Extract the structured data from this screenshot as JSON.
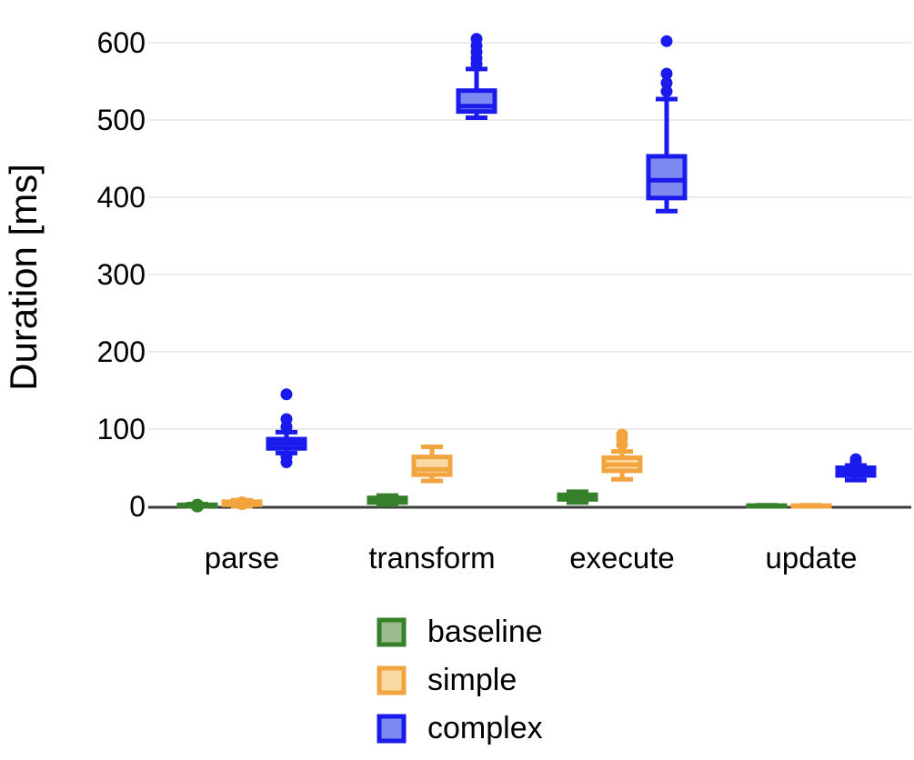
{
  "chart_data": {
    "type": "boxplot",
    "title": "",
    "xlabel": "",
    "ylabel": "Duration [ms]",
    "ylim": [
      0,
      640
    ],
    "yticks": [
      0,
      100,
      200,
      300,
      400,
      500,
      600
    ],
    "grid": "horizontal",
    "categories": [
      "parse",
      "transform",
      "execute",
      "update"
    ],
    "legend": {
      "position": "bottom",
      "entries": [
        "baseline",
        "simple",
        "complex"
      ]
    },
    "colors": {
      "gridline": "#ebebeb",
      "axis": "#3d3d3d",
      "text": "#000000"
    },
    "series": [
      {
        "name": "baseline",
        "border": "#36802b",
        "fill": "#9abb8d",
        "boxes": [
          {
            "category": "parse",
            "low": 0,
            "q1": 0.5,
            "median": 1,
            "q3": 2,
            "high": 3,
            "outliers": [],
            "median_dot": true
          },
          {
            "category": "transform",
            "low": 2,
            "q1": 5,
            "median": 8,
            "q3": 11,
            "high": 14,
            "outliers": [],
            "median_dot": true
          },
          {
            "category": "execute",
            "low": 5,
            "q1": 9,
            "median": 12,
            "q3": 15,
            "high": 19,
            "outliers": [],
            "median_dot": true
          },
          {
            "category": "update",
            "low": 0,
            "q1": 0,
            "median": 0.5,
            "q3": 1,
            "high": 1.5,
            "outliers": [],
            "median_dot": false
          }
        ]
      },
      {
        "name": "simple",
        "border": "#f2a43e",
        "fill": "#fbd9a2",
        "boxes": [
          {
            "category": "parse",
            "low": 0,
            "q1": 2,
            "median": 4,
            "q3": 6,
            "high": 8,
            "outliers": [],
            "median_dot": true
          },
          {
            "category": "transform",
            "low": 33,
            "q1": 41,
            "median": 48,
            "q3": 64,
            "high": 77,
            "outliers": [],
            "median_dot": false
          },
          {
            "category": "execute",
            "low": 35,
            "q1": 46,
            "median": 54,
            "q3": 63,
            "high": 71,
            "outliers": [
              80,
              87,
              93
            ],
            "median_dot": false
          },
          {
            "category": "update",
            "low": 0,
            "q1": 0,
            "median": 0.5,
            "q3": 1,
            "high": 1.5,
            "outliers": [],
            "median_dot": false
          }
        ]
      },
      {
        "name": "complex",
        "border": "#1a1aec",
        "fill": "#7d88f0",
        "boxes": [
          {
            "category": "parse",
            "low": 69,
            "q1": 75,
            "median": 81,
            "q3": 87,
            "high": 96,
            "outliers": [
              57,
              64,
              103,
              113,
              145
            ],
            "median_dot": false
          },
          {
            "category": "transform",
            "low": 503,
            "q1": 511,
            "median": 518,
            "q3": 538,
            "high": 566,
            "outliers": [
              573,
              580,
              588,
              596,
              605
            ],
            "median_dot": false
          },
          {
            "category": "execute",
            "low": 382,
            "q1": 399,
            "median": 422,
            "q3": 453,
            "high": 527,
            "outliers": [
              537,
              548,
              560,
              602
            ],
            "median_dot": false
          },
          {
            "category": "update",
            "low": 34,
            "q1": 40,
            "median": 45,
            "q3": 50,
            "high": 53,
            "outliers": [
              57,
              61
            ],
            "median_dot": false
          }
        ]
      }
    ]
  }
}
